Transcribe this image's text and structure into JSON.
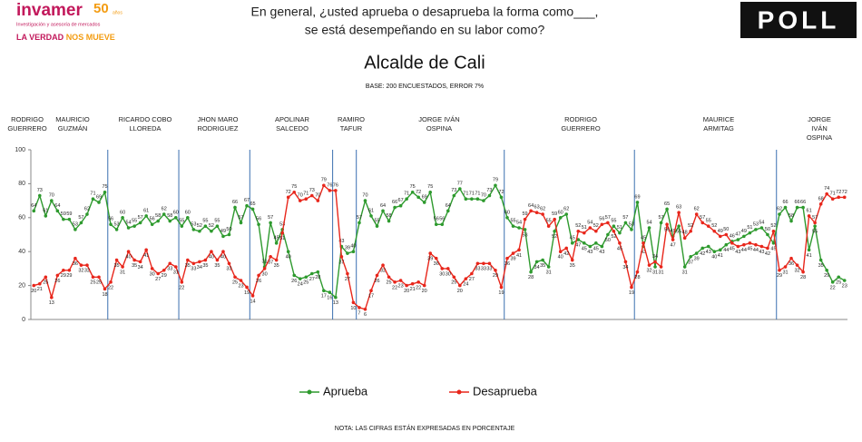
{
  "logo": {
    "brand": "invamer",
    "years": "50",
    "years_unit": "años",
    "tagline": "Investigación y asesoría de mercados",
    "slogan_a": "LA VERDAD",
    "slogan_b": "NOS MUEVE"
  },
  "poll": "POLL",
  "chart_data": {
    "type": "line",
    "question": [
      "En general, ¿usted aprueba o desaprueba la forma como___,",
      "se está desempeñando en su labor como?"
    ],
    "title": "Alcalde de Cali",
    "subtitle": "BASE: 200 ENCUESTADOS, ERROR 7%",
    "note": "NOTA: LAS CIFRAS ESTÁN EXPRESADAS EN PORCENTAJE",
    "periods": [
      [
        "RODRIGO",
        "GUERRERO"
      ],
      [
        "MAURICIO",
        "GUZMÁN"
      ],
      [
        "RICARDO COBO",
        "LLOREDA"
      ],
      [
        "JHON MARO",
        "RODRIGUEZ"
      ],
      [
        "APOLINAR",
        "SALCEDO"
      ],
      [
        "RAMIRO",
        "TAFUR"
      ],
      [
        "JORGE IVÁN",
        "OSPINA"
      ],
      [
        "RODRIGO",
        "GUERRERO"
      ],
      [
        "MAURICE",
        "ARMITAG"
      ],
      [
        "JORGE",
        "IVÁN",
        "OSPINA"
      ]
    ],
    "ylim": [
      0,
      100
    ],
    "yticks": [
      0,
      20,
      40,
      60,
      80,
      100
    ],
    "series": [
      {
        "name": "Aprueba",
        "color": "#2e9a2e",
        "values": [
          64,
          73,
          61,
          70,
          64,
          59,
          59,
          53,
          57,
          62,
          71,
          69,
          75,
          56,
          53,
          60,
          54,
          55,
          57,
          61,
          56,
          58,
          62,
          58,
          60,
          55,
          60,
          53,
          52,
          55,
          52,
          55,
          49,
          50,
          66,
          57,
          67,
          65,
          56,
          31,
          57,
          45,
          53,
          40,
          26,
          24,
          25,
          27,
          28,
          17,
          16,
          13,
          43,
          39,
          40,
          57,
          70,
          61,
          55,
          64,
          58,
          66,
          67,
          71,
          75,
          72,
          69,
          75,
          56,
          56,
          64,
          73,
          77,
          71,
          71,
          71,
          70,
          73,
          79,
          72,
          60,
          55,
          54,
          53,
          28,
          34,
          35,
          31,
          52,
          60,
          62,
          45,
          47,
          45,
          43,
          45,
          43,
          50,
          55,
          51,
          57,
          53,
          69,
          43,
          54,
          31,
          57,
          65,
          49,
          55,
          31,
          37,
          39,
          42,
          43,
          40,
          41,
          44,
          46,
          47,
          49,
          51,
          53,
          54,
          50,
          45,
          62,
          66,
          58,
          66,
          66,
          41,
          55,
          35,
          29,
          22,
          25,
          23
        ]
      },
      {
        "name": "Desaprueba",
        "color": "#e8261b",
        "values": [
          20,
          21,
          25,
          13,
          26,
          29,
          29,
          36,
          32,
          32,
          25,
          25,
          18,
          22,
          35,
          31,
          40,
          35,
          34,
          41,
          30,
          27,
          29,
          33,
          31,
          22,
          35,
          33,
          34,
          35,
          40,
          35,
          40,
          33,
          25,
          23,
          19,
          14,
          26,
          30,
          37,
          35,
          51,
          72,
          75,
          70,
          71,
          73,
          70,
          79,
          76,
          76,
          37,
          27,
          10,
          7,
          6,
          17,
          26,
          32,
          25,
          22,
          23,
          20,
          21,
          22,
          20,
          39,
          36,
          30,
          30,
          25,
          20,
          24,
          27,
          33,
          33,
          33,
          29,
          19,
          36,
          39,
          41,
          59,
          64,
          63,
          62,
          55,
          59,
          40,
          42,
          35,
          52,
          51,
          54,
          52,
          56,
          57,
          52,
          45,
          34,
          19,
          28,
          45,
          32,
          34,
          31,
          56,
          47,
          63,
          48,
          52,
          62,
          57,
          55,
          52,
          49,
          50,
          45,
          43,
          44,
          45,
          44,
          43,
          42,
          52,
          29,
          31,
          36,
          32,
          28,
          61,
          57,
          68,
          74,
          71,
          72,
          72
        ]
      }
    ]
  }
}
